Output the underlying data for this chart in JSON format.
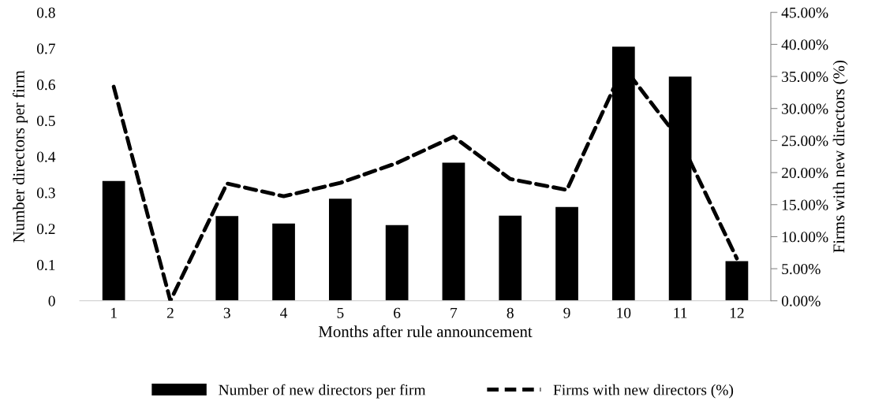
{
  "chart_data": {
    "type": "bar",
    "xlabel": "Months after rule announcement",
    "ylabel": "Number directors per firm",
    "y2label": "Firms with new directors (%)",
    "categories": [
      "1",
      "2",
      "3",
      "4",
      "5",
      "6",
      "7",
      "8",
      "9",
      "10",
      "11",
      "12"
    ],
    "series": [
      {
        "name": "Number of new directors per firm",
        "color": "#000000",
        "values": [
          0.332,
          0,
          0.235,
          0.214,
          0.283,
          0.21,
          0.383,
          0.236,
          0.26,
          0.705,
          0.622,
          0.11
        ]
      },
      {
        "name": "Firms with new directors (%)",
        "type": "line",
        "axis": "y2",
        "color": "#000000",
        "line_style": "dashed",
        "values": [
          33.4,
          0,
          18.3,
          16.3,
          18.4,
          21.5,
          25.6,
          19.0,
          17.3,
          36.5,
          25.0,
          6.6
        ]
      }
    ],
    "ylim": [
      0,
      0.8
    ],
    "yticks": [
      {
        "value": 0,
        "label": "0"
      },
      0.1,
      0.2,
      0.3,
      0.4,
      0.5,
      0.6,
      0.7,
      0.8
    ],
    "y2lim": [
      0,
      45
    ],
    "y2ticks": [
      {
        "value": 0,
        "label": "0.00%"
      },
      {
        "value": 5,
        "label": "5.00%"
      },
      {
        "value": 10,
        "label": "10.00%"
      },
      {
        "value": 15,
        "label": "15.00%"
      },
      {
        "value": 20,
        "label": "20.00%"
      },
      {
        "value": 25,
        "label": "25.00%"
      },
      {
        "value": 30,
        "label": "30.00%"
      },
      {
        "value": 35,
        "label": "35.00%"
      },
      {
        "value": 40,
        "label": "40.00%"
      },
      {
        "value": 45,
        "label": "45.00%"
      }
    ],
    "grid": false,
    "legend": "bottom"
  }
}
